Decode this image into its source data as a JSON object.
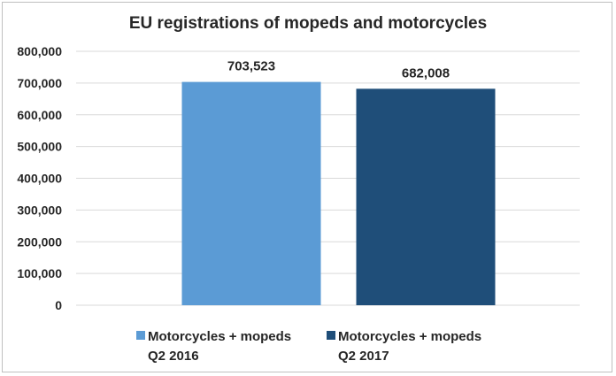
{
  "chart_data": {
    "type": "bar",
    "title": "EU registrations of mopeds and motorcycles",
    "xlabel": "",
    "ylabel": "",
    "ylim": [
      0,
      800000
    ],
    "yticks": [
      0,
      100000,
      200000,
      300000,
      400000,
      500000,
      600000,
      700000,
      800000
    ],
    "ytick_labels": [
      "0",
      "100,000",
      "200,000",
      "300,000",
      "400,000",
      "500,000",
      "600,000",
      "700,000",
      "800,000"
    ],
    "grid": true,
    "legend_position": "bottom",
    "series": [
      {
        "name": "Motorcycles + mopeds Q2 2016",
        "name_lines": [
          "Motorcycles + mopeds",
          "Q2 2016"
        ],
        "value": 703523,
        "label": "703,523",
        "color": "#5b9bd5"
      },
      {
        "name": "Motorcycles + mopeds Q2 2017",
        "name_lines": [
          "Motorcycles + mopeds",
          "Q2 2017"
        ],
        "value": 682008,
        "label": "682,008",
        "color": "#1f4e79"
      }
    ]
  },
  "colors": {
    "gridline": "#d9d9d9",
    "text": "#262626",
    "frame": "#bfbfbf"
  }
}
